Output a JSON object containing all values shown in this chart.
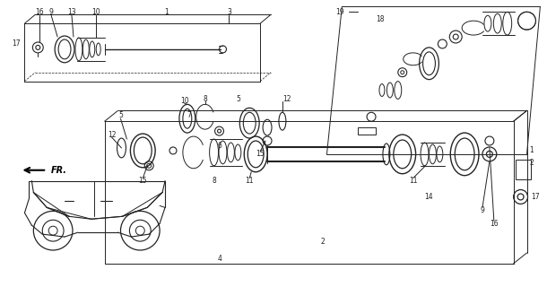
{
  "bg_color": "#ffffff",
  "line_color": "#222222",
  "figsize": [
    6.1,
    3.2
  ],
  "dpi": 100
}
